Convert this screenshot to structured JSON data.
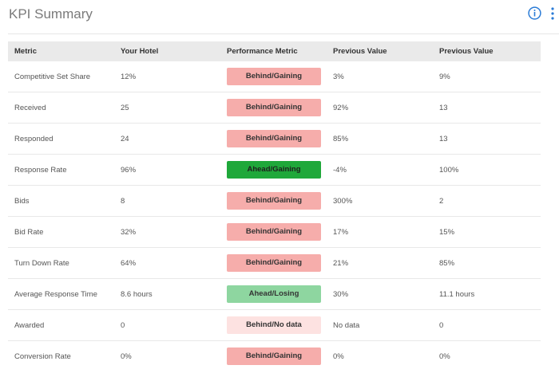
{
  "header": {
    "title": "KPI Summary",
    "info_icon": "info-circle-icon",
    "more_icon": "more-vertical-icon"
  },
  "colors": {
    "accent": "#2a7bd6",
    "behind": "#f6adab",
    "ahead_gaining": "#1fa83a",
    "ahead_losing": "#8ed6a0",
    "no_data": "#fde2e1"
  },
  "table": {
    "columns": [
      "Metric",
      "Your Hotel",
      "Performance Metric",
      "Previous Value",
      "Previous Value"
    ],
    "rows": [
      {
        "metric": "Competitive Set Share",
        "your_hotel": "12%",
        "performance": "Behind/Gaining",
        "status": "behind",
        "prev1": "3%",
        "prev2": "9%"
      },
      {
        "metric": "Received",
        "your_hotel": "25",
        "performance": "Behind/Gaining",
        "status": "behind",
        "prev1": "92%",
        "prev2": "13"
      },
      {
        "metric": "Responded",
        "your_hotel": "24",
        "performance": "Behind/Gaining",
        "status": "behind",
        "prev1": "85%",
        "prev2": "13"
      },
      {
        "metric": "Response Rate",
        "your_hotel": "96%",
        "performance": "Ahead/Gaining",
        "status": "ahead-gain",
        "prev1": "-4%",
        "prev2": "100%"
      },
      {
        "metric": "Bids",
        "your_hotel": "8",
        "performance": "Behind/Gaining",
        "status": "behind",
        "prev1": "300%",
        "prev2": "2"
      },
      {
        "metric": "Bid Rate",
        "your_hotel": "32%",
        "performance": "Behind/Gaining",
        "status": "behind",
        "prev1": "17%",
        "prev2": "15%"
      },
      {
        "metric": "Turn Down Rate",
        "your_hotel": "64%",
        "performance": "Behind/Gaining",
        "status": "behind",
        "prev1": "21%",
        "prev2": "85%"
      },
      {
        "metric": "Average Response Time",
        "your_hotel": "8.6 hours",
        "performance": "Ahead/Losing",
        "status": "ahead-lose",
        "prev1": "30%",
        "prev2": "11.1 hours"
      },
      {
        "metric": "Awarded",
        "your_hotel": "0",
        "performance": "Behind/No data",
        "status": "nodata",
        "prev1": "No data",
        "prev2": "0"
      },
      {
        "metric": "Conversion Rate",
        "your_hotel": "0%",
        "performance": "Behind/Gaining",
        "status": "behind",
        "prev1": "0%",
        "prev2": "0%"
      }
    ]
  }
}
